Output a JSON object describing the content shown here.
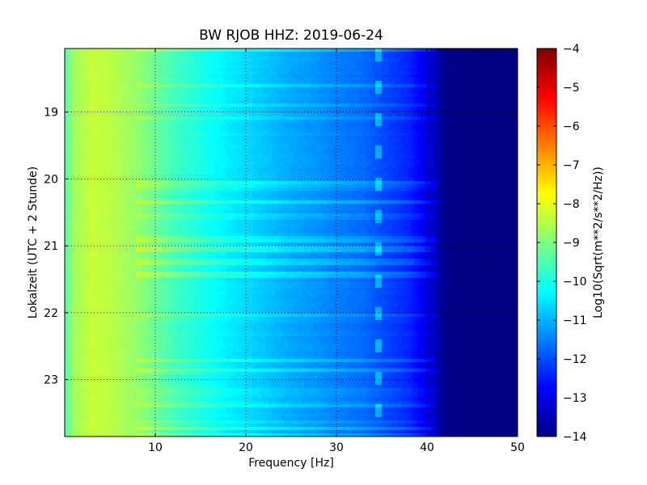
{
  "chart_data": {
    "type": "heatmap",
    "title": "BW RJOB HHZ: 2019-06-24",
    "xlabel": "Frequency [Hz]",
    "ylabel": "Lokalzeit (UTC + 2 Stunde)",
    "xlim": [
      0,
      50
    ],
    "ylim": [
      18.05,
      23.85
    ],
    "y_inverted": true,
    "xticks": [
      10,
      20,
      30,
      40,
      50
    ],
    "yticks": [
      19,
      20,
      21,
      22,
      23
    ],
    "grid": true,
    "colorbar": {
      "label": "Log10(Sqrt(m**2/s**2/Hz))",
      "vmin": -14,
      "vmax": -4,
      "ticks": [
        -4,
        -5,
        -6,
        -7,
        -8,
        -9,
        -10,
        -11,
        -12,
        -13,
        -14
      ],
      "colormap": "jet"
    },
    "spectral_profile": {
      "frequency": [
        0,
        1,
        3,
        5,
        8,
        10,
        12,
        15,
        18,
        20,
        23,
        25,
        28,
        30,
        33,
        35,
        38,
        40,
        42,
        45,
        50
      ],
      "log10_amplitude": [
        -9.5,
        -8.7,
        -8.3,
        -8.4,
        -8.8,
        -9.2,
        -9.6,
        -10.0,
        -10.4,
        -10.6,
        -10.9,
        -11.1,
        -11.3,
        -11.5,
        -11.7,
        -12.0,
        -12.4,
        -13.0,
        -13.9,
        -14.0,
        -14.0
      ]
    },
    "feature_frequency_hz": 34.5
  }
}
